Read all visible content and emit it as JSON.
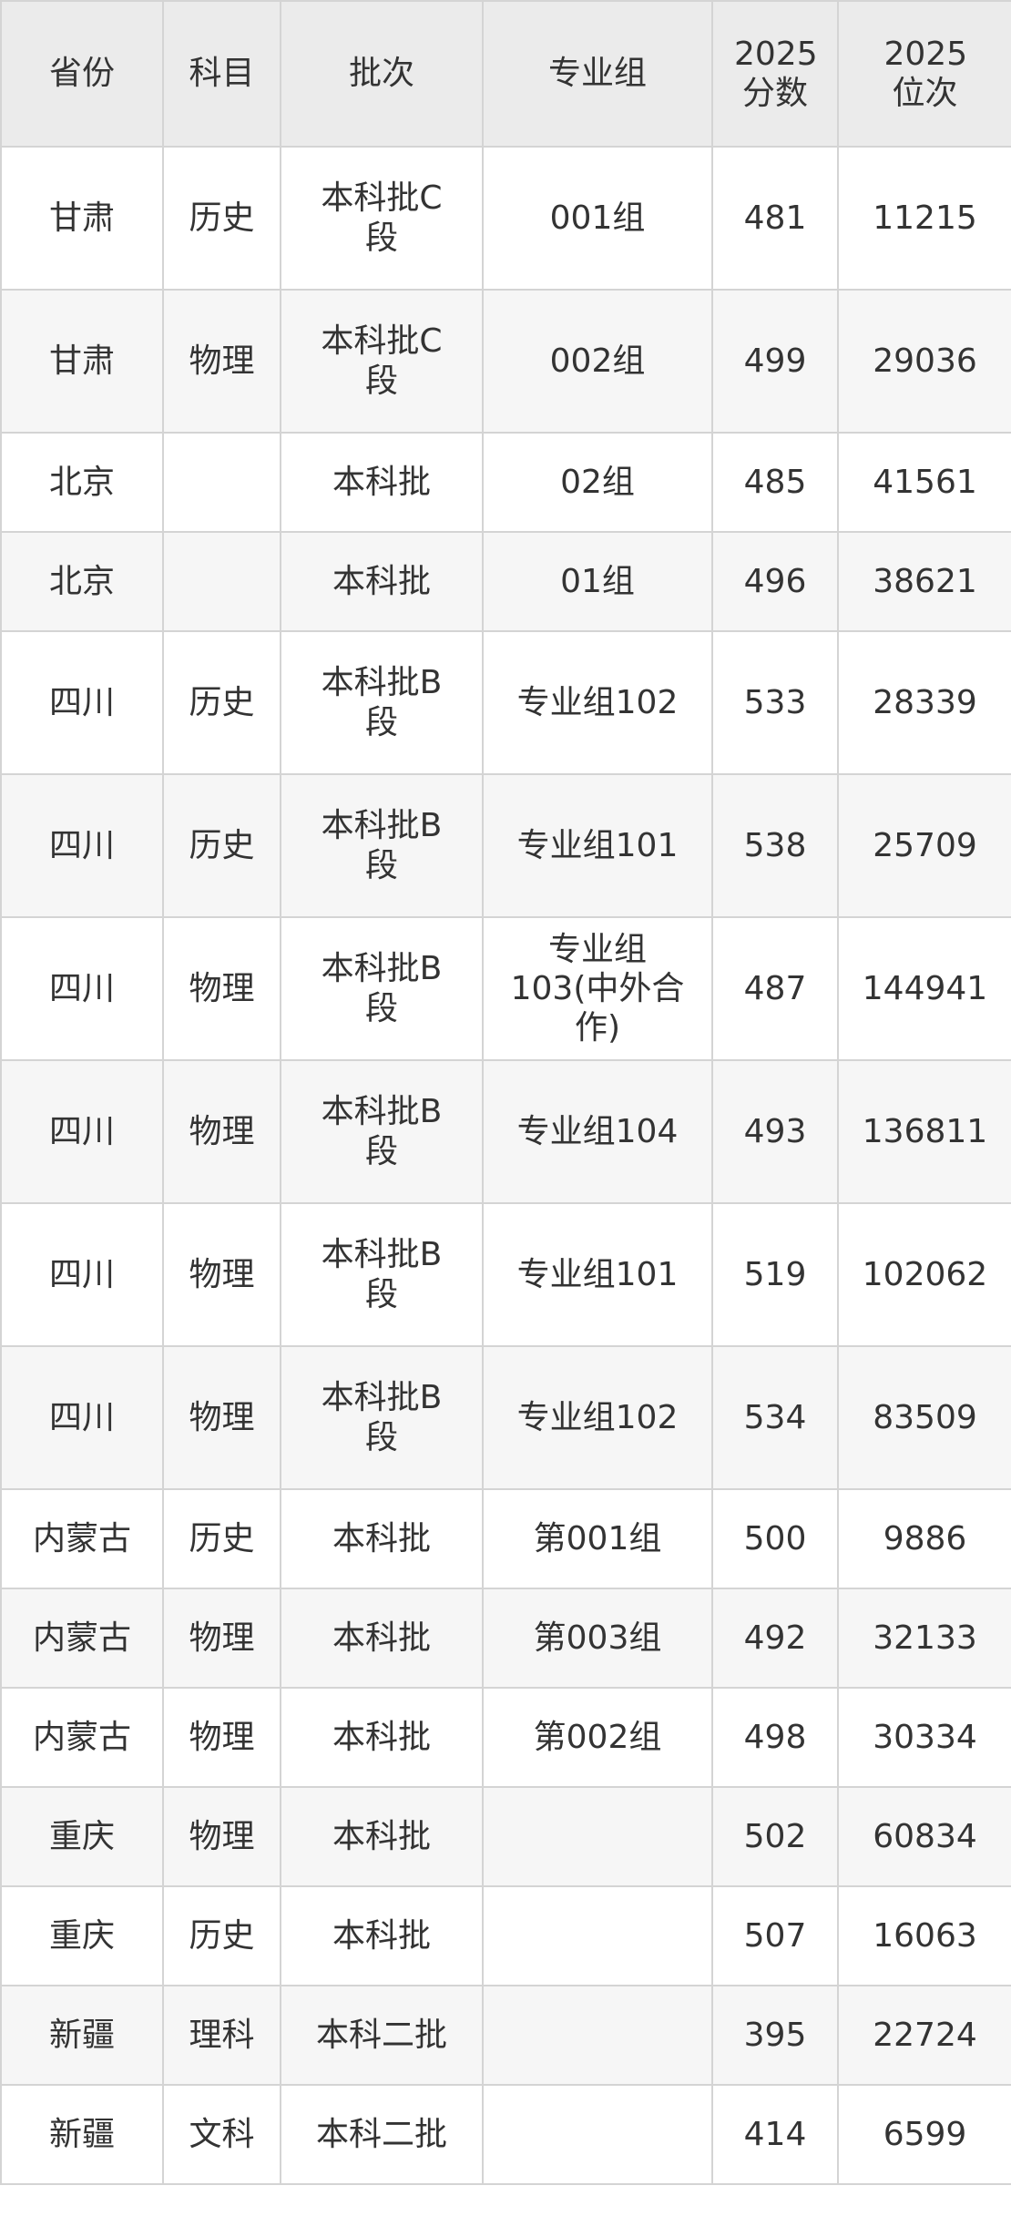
{
  "table": {
    "header": [
      "省份",
      "科目",
      "批次",
      "专业组",
      "2025分数",
      "2025位次"
    ],
    "rows": [
      [
        "甘肃",
        "历史",
        "本科批C段",
        "001组",
        "481",
        "11215"
      ],
      [
        "甘肃",
        "物理",
        "本科批C段",
        "002组",
        "499",
        "29036"
      ],
      [
        "北京",
        null,
        "本科批",
        "02组",
        "485",
        "41561"
      ],
      [
        "北京",
        null,
        "本科批",
        "01组",
        "496",
        "38621"
      ],
      [
        "四川",
        "历史",
        "本科批B段",
        "专业组102",
        "533",
        "28339"
      ],
      [
        "四川",
        "历史",
        "本科批B段",
        "专业组101",
        "538",
        "25709"
      ],
      [
        "四川",
        "物理",
        "本科批B段",
        "专业组103(中外合作)",
        "487",
        "144941"
      ],
      [
        "四川",
        "物理",
        "本科批B段",
        "专业组104",
        "493",
        "136811"
      ],
      [
        "四川",
        "物理",
        "本科批B段",
        "专业组101",
        "519",
        "102062"
      ],
      [
        "四川",
        "物理",
        "本科批B段",
        "专业组102",
        "534",
        "83509"
      ],
      [
        "内蒙古",
        "历史",
        "本科批",
        "第001组",
        "500",
        "9886"
      ],
      [
        "内蒙古",
        "物理",
        "本科批",
        "第003组",
        "492",
        "32133"
      ],
      [
        "内蒙古",
        "物理",
        "本科批",
        "第002组",
        "498",
        "30334"
      ],
      [
        "重庆",
        "物理",
        "本科批",
        null,
        "502",
        "60834"
      ],
      [
        "重庆",
        "历史",
        "本科批",
        null,
        "507",
        "16063"
      ],
      [
        "新疆",
        "理科",
        "本科二批",
        null,
        "395",
        "22724"
      ],
      [
        "新疆",
        "文科",
        "本科二批",
        null,
        "414",
        "6599"
      ]
    ]
  }
}
